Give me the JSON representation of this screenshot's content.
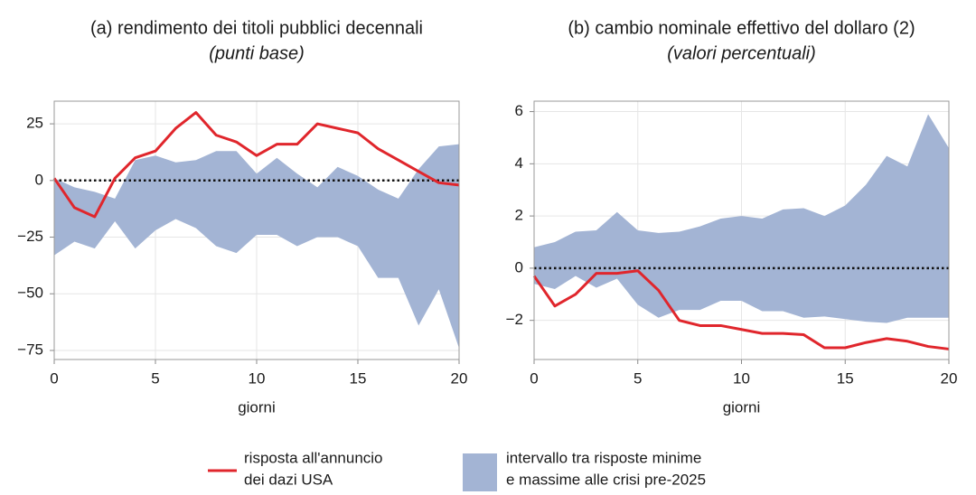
{
  "chart_data": [
    {
      "type": "band-line",
      "title": "(a) rendimento dei titoli pubblici decennali",
      "subtitle": "(punti base)",
      "xlabel": "giorni",
      "x": [
        0,
        1,
        2,
        3,
        4,
        5,
        6,
        7,
        8,
        9,
        10,
        11,
        12,
        13,
        14,
        15,
        16,
        17,
        18,
        19,
        20
      ],
      "xlim": [
        0,
        20
      ],
      "xticks": [
        0,
        5,
        10,
        15,
        20
      ],
      "ylim": [
        -79,
        35
      ],
      "yticks": [
        {
          "value": -75,
          "label": "−75"
        },
        {
          "value": -50,
          "label": "−50"
        },
        {
          "value": -25,
          "label": "−25"
        },
        0,
        25
      ],
      "grid": true,
      "zero_line": true,
      "series": [
        {
          "type": "band",
          "name": [
            "intervallo tra risposte minime",
            "e massime alle crisi pre-2025"
          ],
          "color": "#a3b4d4",
          "high": [
            1,
            -3,
            -5,
            -8,
            9,
            11,
            8,
            9,
            13,
            13,
            3,
            10,
            3,
            -3,
            6,
            2,
            -4,
            -8,
            5,
            15,
            16
          ],
          "low": [
            -33,
            -27,
            -30,
            -18,
            -30,
            -22,
            -17,
            -21,
            -29,
            -32,
            -24,
            -24,
            -29,
            -25,
            -25,
            -29,
            -43,
            -43,
            -64,
            -48,
            -74
          ]
        },
        {
          "type": "line",
          "name": [
            "risposta all'annuncio",
            "dei dazi USA"
          ],
          "color": "#e0262c",
          "values": [
            1,
            -12,
            -16,
            1,
            10,
            13,
            23,
            30,
            20,
            17,
            11,
            16,
            16,
            25,
            23,
            21,
            14,
            9,
            4,
            -1,
            -2
          ]
        }
      ]
    },
    {
      "type": "band-line",
      "title": "(b) cambio nominale effettivo del dollaro (2)",
      "subtitle": "(valori percentuali)",
      "xlabel": "giorni",
      "x": [
        0,
        1,
        2,
        3,
        4,
        5,
        6,
        7,
        8,
        9,
        10,
        11,
        12,
        13,
        14,
        15,
        16,
        17,
        18,
        19,
        20
      ],
      "xlim": [
        0,
        20
      ],
      "xticks": [
        0,
        5,
        10,
        15,
        20
      ],
      "ylim": [
        -3.5,
        6.4
      ],
      "yticks": [
        {
          "value": -2,
          "label": "−2"
        },
        0,
        2,
        4,
        6
      ],
      "grid": true,
      "zero_line": true,
      "series": [
        {
          "type": "band",
          "color": "#a3b4d4",
          "high": [
            0.8,
            1.0,
            1.4,
            1.45,
            2.15,
            1.45,
            1.35,
            1.4,
            1.6,
            1.9,
            2.0,
            1.9,
            2.25,
            2.3,
            2.0,
            2.4,
            3.2,
            4.3,
            3.9,
            5.9,
            4.6
          ],
          "low": [
            -0.6,
            -0.8,
            -0.3,
            -0.75,
            -0.4,
            -1.4,
            -1.9,
            -1.6,
            -1.6,
            -1.25,
            -1.25,
            -1.65,
            -1.65,
            -1.9,
            -1.85,
            -1.95,
            -2.05,
            -2.1,
            -1.9,
            -1.9,
            -1.9
          ]
        },
        {
          "type": "line",
          "color": "#e0262c",
          "values": [
            -0.3,
            -1.45,
            -1.0,
            -0.2,
            -0.2,
            -0.1,
            -0.85,
            -2.0,
            -2.2,
            -2.2,
            -2.35,
            -2.5,
            -2.5,
            -2.55,
            -3.05,
            -3.05,
            -2.85,
            -2.7,
            -2.8,
            -3.0,
            -3.1
          ]
        }
      ]
    }
  ]
}
